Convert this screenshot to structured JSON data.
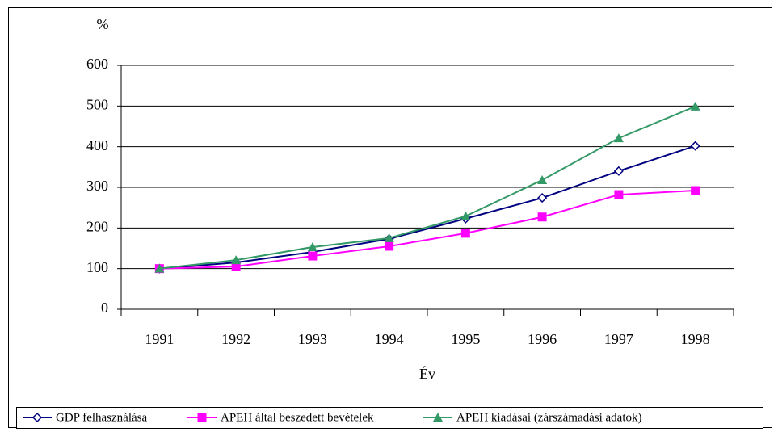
{
  "chart_data": {
    "type": "line",
    "y_label": "%",
    "x_label": "Év",
    "categories": [
      "1991",
      "1992",
      "1993",
      "1994",
      "1995",
      "1996",
      "1997",
      "1998"
    ],
    "series": [
      {
        "name": "GDP felhasználása",
        "color": "#000080",
        "marker": "diamond",
        "values": [
          100,
          115,
          141,
          173,
          223,
          274,
          340,
          402
        ]
      },
      {
        "name": "APEH által beszedett bevételek",
        "color": "#ff00ff",
        "marker": "square",
        "values": [
          100,
          105,
          131,
          155,
          187,
          227,
          282,
          292
        ]
      },
      {
        "name": "APEH kiadásai (zárszámadási adatok)",
        "color": "#339966",
        "marker": "triangle",
        "values": [
          100,
          121,
          153,
          175,
          229,
          318,
          421,
          499
        ]
      }
    ],
    "ylim": [
      0,
      600
    ],
    "yticks": [
      0,
      100,
      200,
      300,
      400,
      500,
      600
    ],
    "grid": true,
    "legend": "bottom"
  }
}
